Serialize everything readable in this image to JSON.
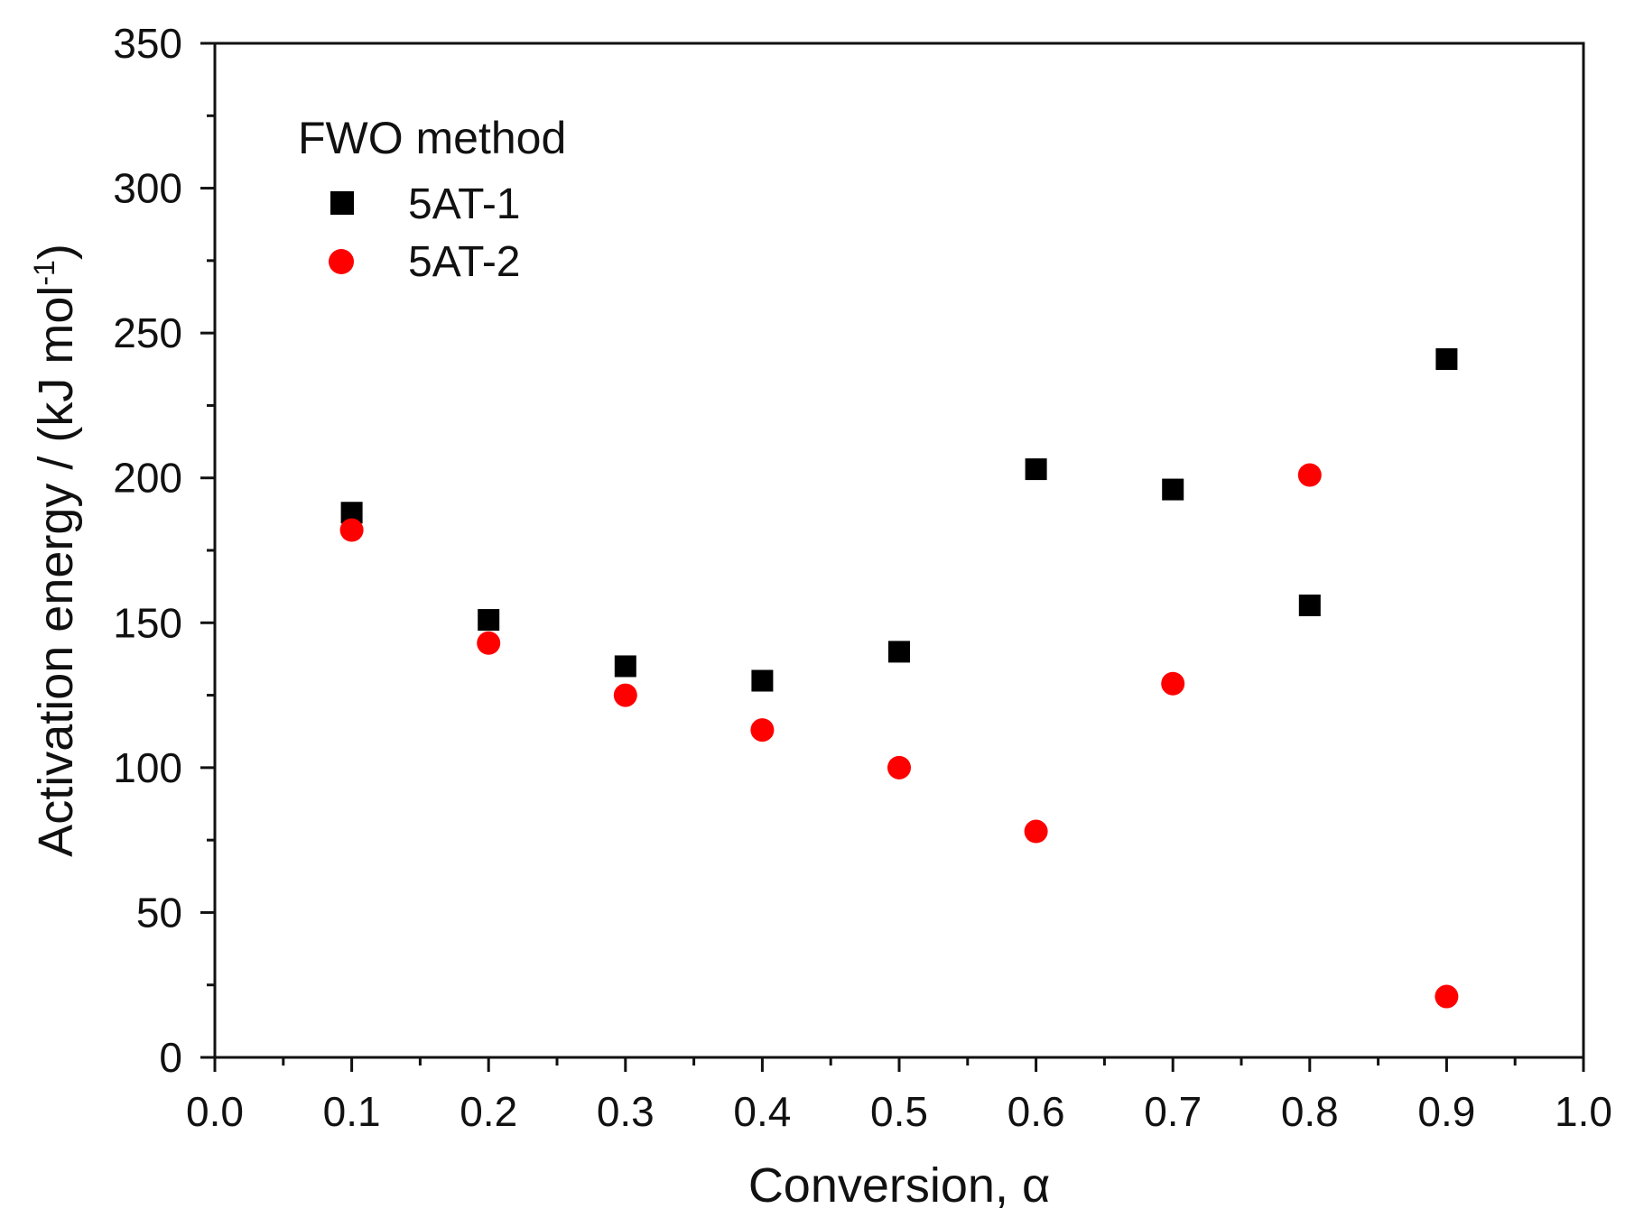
{
  "chart_data": {
    "type": "scatter",
    "title": "",
    "xlabel": "Conversion, α",
    "ylabel": "Activation energy / (kJ mol",
    "ylabel_sup": "-1",
    "ylabel_close": ")",
    "xlim": [
      0.0,
      1.0
    ],
    "ylim": [
      0,
      350
    ],
    "xticks": [
      "0.0",
      "0.1",
      "0.2",
      "0.3",
      "0.4",
      "0.5",
      "0.6",
      "0.7",
      "0.8",
      "0.9",
      "1.0"
    ],
    "yticks": [
      "0",
      "50",
      "100",
      "150",
      "200",
      "250",
      "300",
      "350"
    ],
    "grid": false,
    "legend": {
      "title": "FWO method",
      "placement": "top-left"
    },
    "series": [
      {
        "name": "5AT-1",
        "marker": "square",
        "color": "#000000",
        "points": [
          {
            "x": 0.1,
            "y": 188
          },
          {
            "x": 0.2,
            "y": 151
          },
          {
            "x": 0.3,
            "y": 135
          },
          {
            "x": 0.4,
            "y": 130
          },
          {
            "x": 0.5,
            "y": 140
          },
          {
            "x": 0.6,
            "y": 203
          },
          {
            "x": 0.7,
            "y": 196
          },
          {
            "x": 0.8,
            "y": 156
          },
          {
            "x": 0.9,
            "y": 241
          }
        ]
      },
      {
        "name": "5AT-2",
        "marker": "circle",
        "color": "#ff0000",
        "points": [
          {
            "x": 0.1,
            "y": 182
          },
          {
            "x": 0.2,
            "y": 143
          },
          {
            "x": 0.3,
            "y": 125
          },
          {
            "x": 0.4,
            "y": 113
          },
          {
            "x": 0.5,
            "y": 100
          },
          {
            "x": 0.6,
            "y": 78
          },
          {
            "x": 0.7,
            "y": 129
          },
          {
            "x": 0.8,
            "y": 201
          },
          {
            "x": 0.9,
            "y": 21
          }
        ]
      }
    ]
  }
}
